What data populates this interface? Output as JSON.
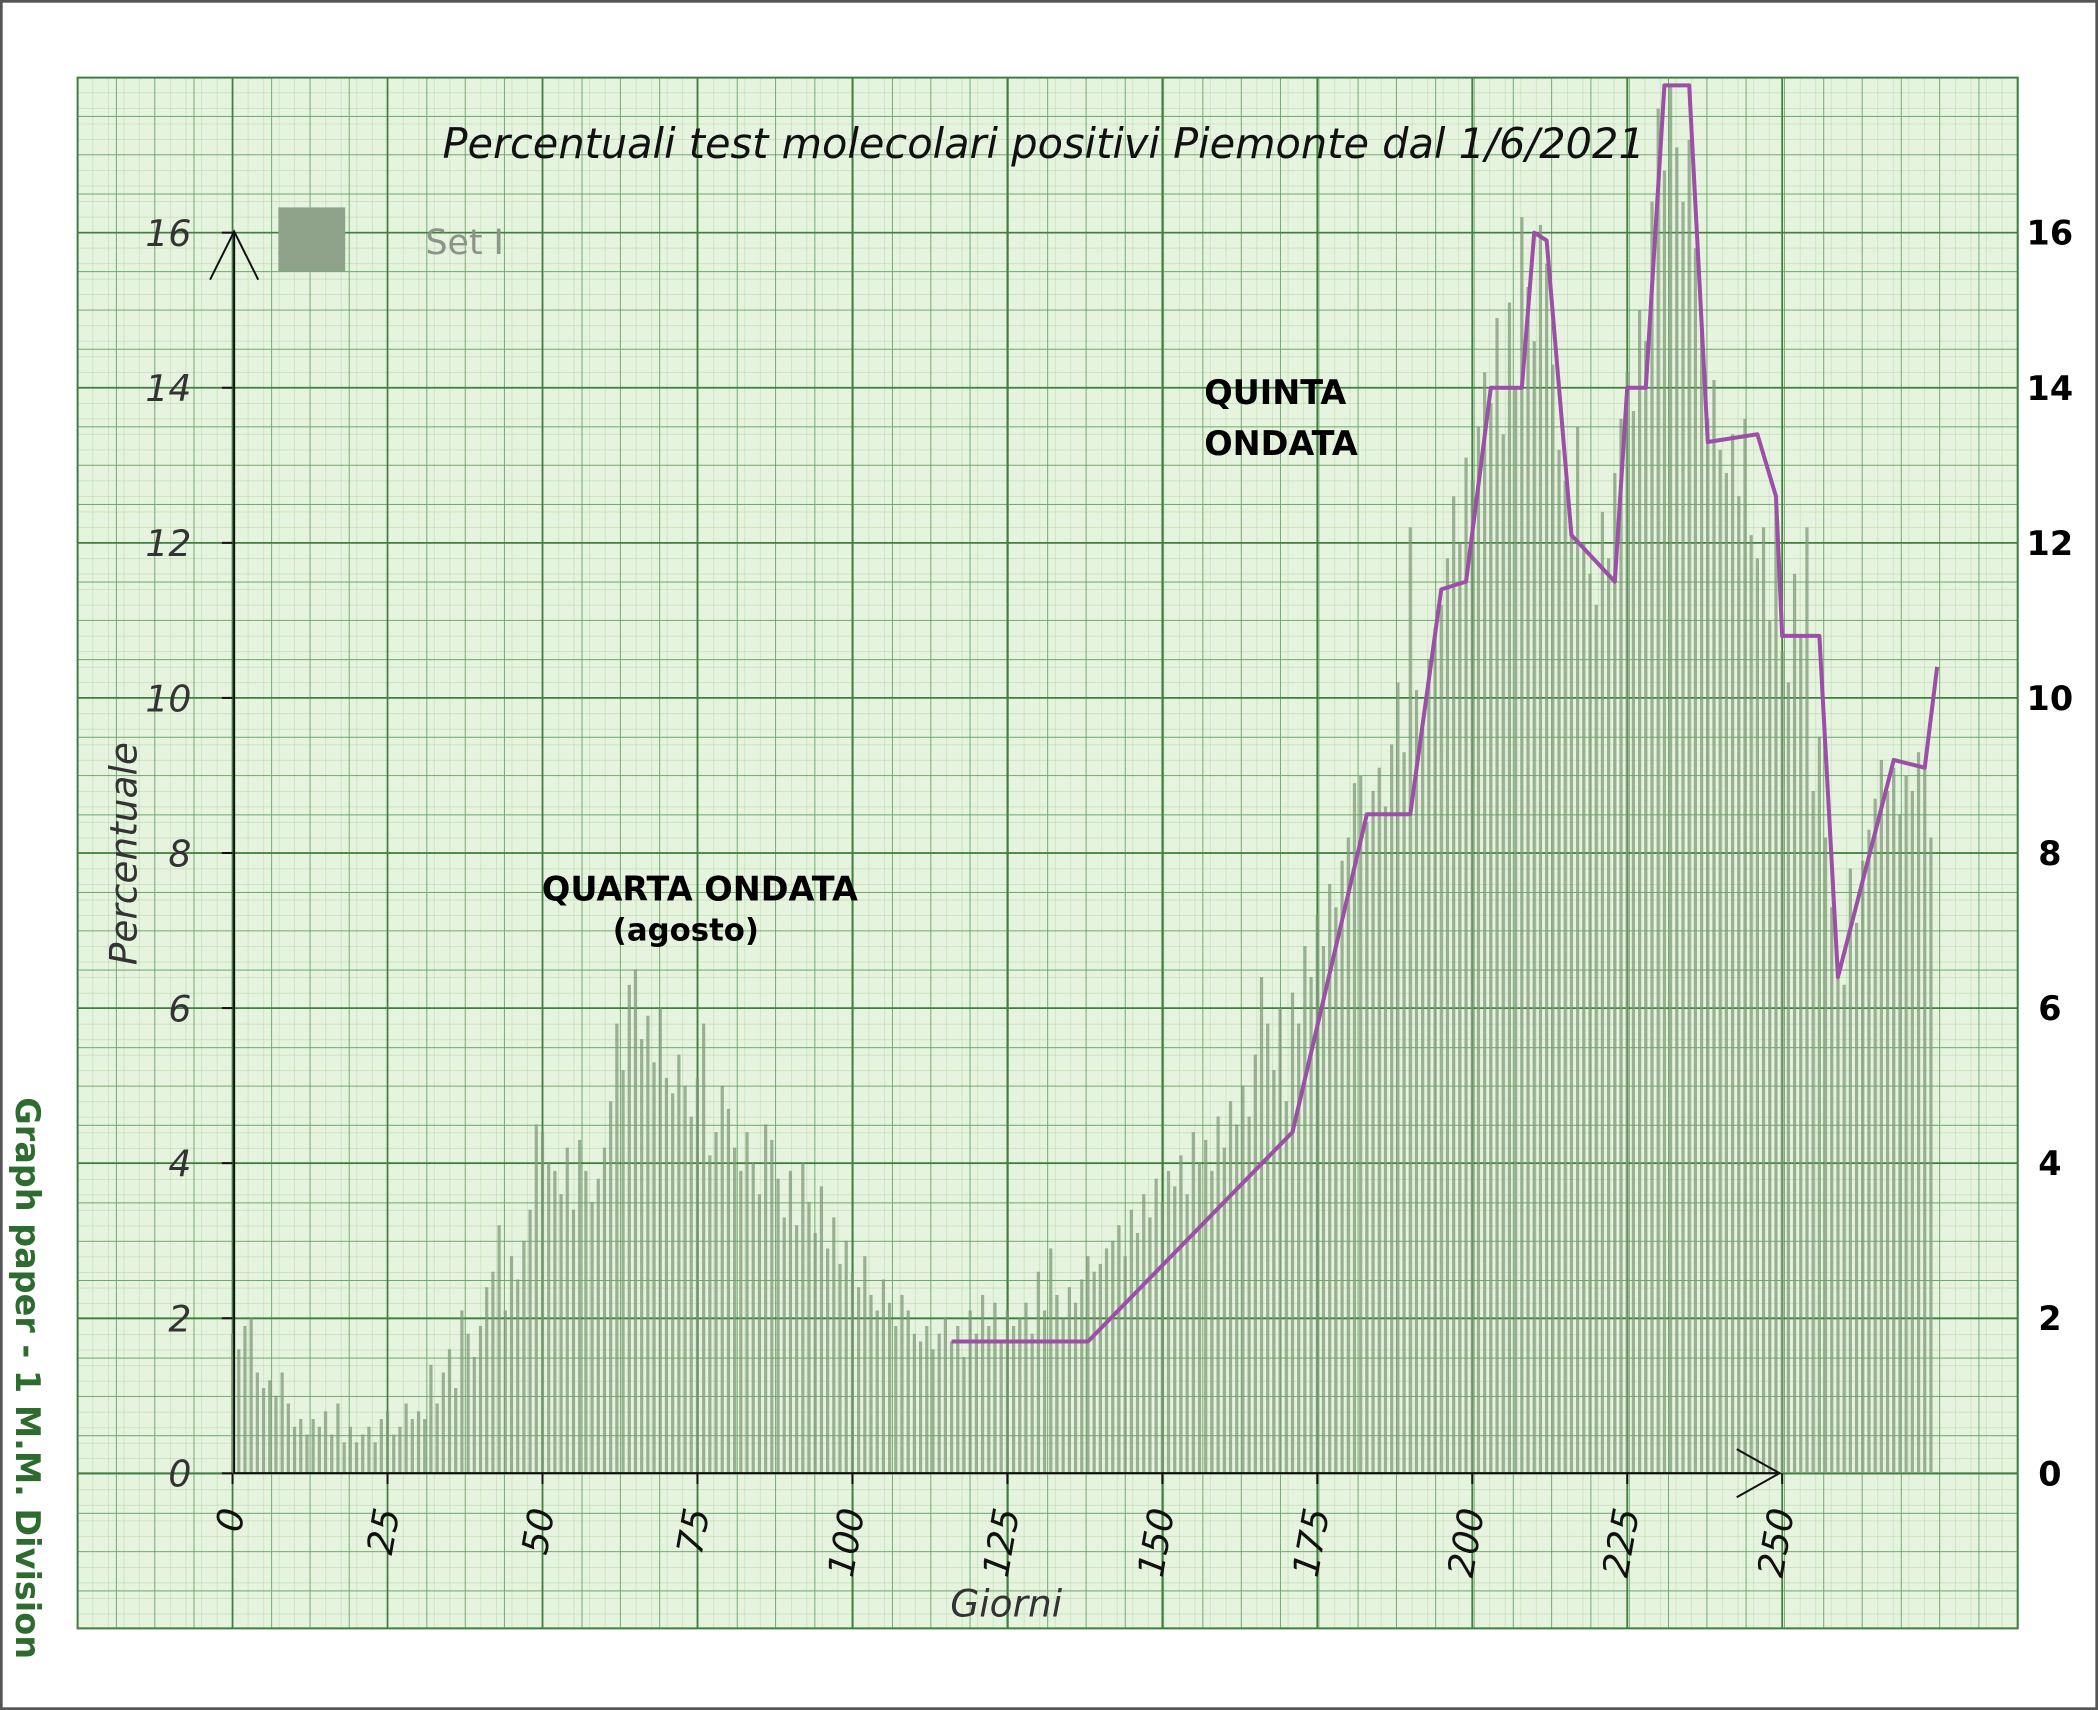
{
  "chart_data": {
    "type": "bar",
    "title": "Percentuali test molecolari positivi Piemonte dal 1/6/2021",
    "x_label": "Giorni",
    "y_label": "Percentuale",
    "side_note": "Graph paper - 1 M.M. Division",
    "annotations": [
      "QUINTA",
      "ONDATA",
      "QUARTA ONDATA",
      "(agosto)"
    ],
    "xlim": [
      -25,
      288
    ],
    "ylim": [
      -2,
      18
    ],
    "y2lim": [
      -2,
      18
    ],
    "xticks": [
      0,
      25,
      50,
      75,
      100,
      125,
      150,
      175,
      200,
      225,
      250
    ],
    "yticks": [
      0,
      2,
      4,
      6,
      8,
      10,
      12,
      14,
      16
    ],
    "y2ticks": [
      0,
      2,
      4,
      6,
      8,
      10,
      12,
      14,
      16
    ],
    "grid": true,
    "series": [
      {
        "name": "Set I",
        "type": "bar",
        "color": "#7f9a7a",
        "x": [
          0,
          1,
          2,
          3,
          4,
          5,
          6,
          7,
          8,
          9,
          10,
          11,
          12,
          13,
          14,
          15,
          16,
          17,
          18,
          19,
          20,
          21,
          22,
          23,
          24,
          25,
          26,
          27,
          28,
          29,
          30,
          31,
          32,
          33,
          34,
          35,
          36,
          37,
          38,
          39,
          40,
          41,
          42,
          43,
          44,
          45,
          46,
          47,
          48,
          49,
          50,
          51,
          52,
          53,
          54,
          55,
          56,
          57,
          58,
          59,
          60,
          61,
          62,
          63,
          64,
          65,
          66,
          67,
          68,
          69,
          70,
          71,
          72,
          73,
          74,
          75,
          76,
          77,
          78,
          79,
          80,
          81,
          82,
          83,
          84,
          85,
          86,
          87,
          88,
          89,
          90,
          91,
          92,
          93,
          94,
          95,
          96,
          97,
          98,
          99,
          100,
          101,
          102,
          103,
          104,
          105,
          106,
          107,
          108,
          109,
          110,
          111,
          112,
          113,
          114,
          115,
          116,
          117,
          118,
          119,
          120,
          121,
          122,
          123,
          124,
          125,
          126,
          127,
          128,
          129,
          130,
          131,
          132,
          133,
          134,
          135,
          136,
          137,
          138,
          139,
          140,
          141,
          142,
          143,
          144,
          145,
          146,
          147,
          148,
          149,
          150,
          151,
          152,
          153,
          154,
          155,
          156,
          157,
          158,
          159,
          160,
          161,
          162,
          163,
          164,
          165,
          166,
          167,
          168,
          169,
          170,
          171,
          172,
          173,
          174,
          175,
          176,
          177,
          178,
          179,
          180,
          181,
          182,
          183,
          184,
          185,
          186,
          187,
          188,
          189,
          190,
          191,
          192,
          193,
          194,
          195,
          196,
          197,
          198,
          199,
          200,
          201,
          202,
          203,
          204,
          205,
          206,
          207,
          208,
          209,
          210,
          211,
          212,
          213,
          214,
          215,
          216,
          217,
          218,
          219,
          220,
          221,
          222,
          223,
          224,
          225,
          226,
          227,
          228,
          229,
          230,
          231,
          232,
          233,
          234,
          235,
          236,
          237,
          238,
          239,
          240,
          241,
          242,
          243,
          244,
          245,
          246,
          247,
          248,
          249,
          250,
          251,
          252,
          253,
          254,
          255,
          256,
          257,
          258,
          259,
          260,
          261,
          262,
          263,
          264,
          265,
          266,
          267,
          268,
          269,
          270,
          271,
          272,
          273,
          274
        ],
        "values": [
          1.8,
          1.6,
          1.9,
          2.0,
          1.3,
          1.1,
          1.2,
          1.0,
          1.3,
          0.9,
          0.6,
          0.7,
          0.5,
          0.7,
          0.6,
          0.8,
          0.5,
          0.9,
          0.4,
          0.6,
          0.4,
          0.5,
          0.6,
          0.4,
          0.7,
          0.8,
          0.5,
          0.6,
          0.9,
          0.7,
          0.8,
          0.7,
          1.4,
          0.9,
          1.3,
          1.6,
          1.1,
          2.1,
          1.8,
          1.5,
          1.9,
          2.4,
          2.6,
          3.2,
          2.1,
          2.8,
          2.5,
          3.0,
          3.4,
          4.5,
          4.4,
          4.0,
          3.9,
          3.6,
          4.2,
          3.4,
          4.3,
          3.9,
          3.5,
          3.8,
          4.2,
          4.8,
          5.8,
          5.2,
          6.3,
          6.5,
          5.6,
          5.9,
          5.3,
          6.0,
          5.1,
          4.9,
          5.4,
          5.0,
          4.6,
          5.1,
          5.8,
          4.1,
          4.4,
          5.0,
          4.7,
          4.2,
          3.9,
          4.4,
          4.0,
          3.6,
          4.5,
          4.3,
          3.8,
          3.3,
          3.9,
          3.2,
          4.0,
          3.5,
          3.1,
          3.7,
          2.9,
          3.3,
          2.7,
          3.0,
          2.6,
          2.4,
          2.8,
          2.3,
          2.1,
          2.5,
          2.2,
          1.9,
          2.3,
          2.1,
          1.8,
          1.7,
          1.9,
          1.6,
          1.8,
          2.0,
          1.7,
          1.9,
          1.5,
          2.1,
          1.8,
          2.3,
          1.9,
          2.2,
          1.7,
          2.1,
          1.9,
          2.0,
          2.2,
          1.8,
          2.6,
          2.1,
          2.9,
          2.3,
          2.0,
          2.4,
          2.2,
          2.5,
          2.8,
          2.6,
          2.7,
          2.9,
          3.0,
          3.2,
          2.8,
          3.4,
          3.1,
          3.6,
          3.3,
          3.8,
          3.5,
          3.9,
          3.7,
          4.1,
          3.6,
          4.4,
          4.0,
          4.3,
          3.9,
          4.6,
          4.2,
          4.8,
          4.5,
          5.0,
          4.6,
          5.4,
          6.4,
          5.8,
          5.2,
          6.0,
          4.8,
          6.2,
          5.8,
          6.8,
          6.4,
          7.2,
          6.8,
          7.6,
          7.3,
          7.9,
          8.2,
          8.9,
          9.0,
          8.4,
          8.8,
          9.1,
          8.6,
          9.4,
          10.2,
          9.3,
          12.2,
          10.1,
          9.6,
          10.5,
          10.9,
          11.2,
          11.8,
          12.6,
          12.0,
          13.1,
          12.8,
          13.5,
          14.2,
          13.8,
          14.9,
          13.4,
          15.1,
          14.0,
          16.2,
          15.3,
          14.6,
          16.1,
          15.6,
          14.3,
          13.2,
          12.8,
          12.2,
          13.5,
          12.0,
          11.6,
          11.2,
          12.4,
          11.8,
          12.9,
          13.6,
          14.2,
          13.7,
          15.0,
          14.6,
          16.4,
          17.6,
          16.8,
          17.9,
          17.1,
          16.4,
          17.2,
          15.8,
          14.7,
          13.6,
          14.1,
          13.2,
          12.9,
          13.4,
          12.6,
          13.6,
          12.1,
          11.8,
          12.2,
          11.0,
          12.6,
          10.6,
          10.2,
          11.6,
          10.8,
          12.2,
          8.8,
          9.5,
          8.2,
          7.3,
          6.6,
          6.3,
          7.8,
          7.1,
          7.9,
          8.3,
          8.7,
          9.2,
          8.8,
          9.1,
          8.5,
          9.0,
          8.8,
          9.3,
          9.1,
          8.2
        ]
      },
      {
        "type": "line",
        "color": "#9b4fa6",
        "x": [
          116,
          138,
          171,
          183,
          190,
          195,
          199,
          203,
          208,
          210,
          212,
          216,
          223,
          225,
          228,
          231,
          235,
          238,
          246,
          249,
          250,
          256,
          259,
          268,
          273,
          275
        ],
        "values": [
          1.7,
          1.7,
          4.4,
          8.5,
          8.5,
          11.4,
          11.5,
          14.0,
          14.0,
          16.0,
          15.9,
          12.1,
          11.5,
          14.0,
          14.0,
          17.9,
          17.9,
          13.3,
          13.4,
          12.6,
          10.8,
          10.8,
          6.4,
          9.2,
          9.1,
          10.4
        ]
      }
    ]
  }
}
